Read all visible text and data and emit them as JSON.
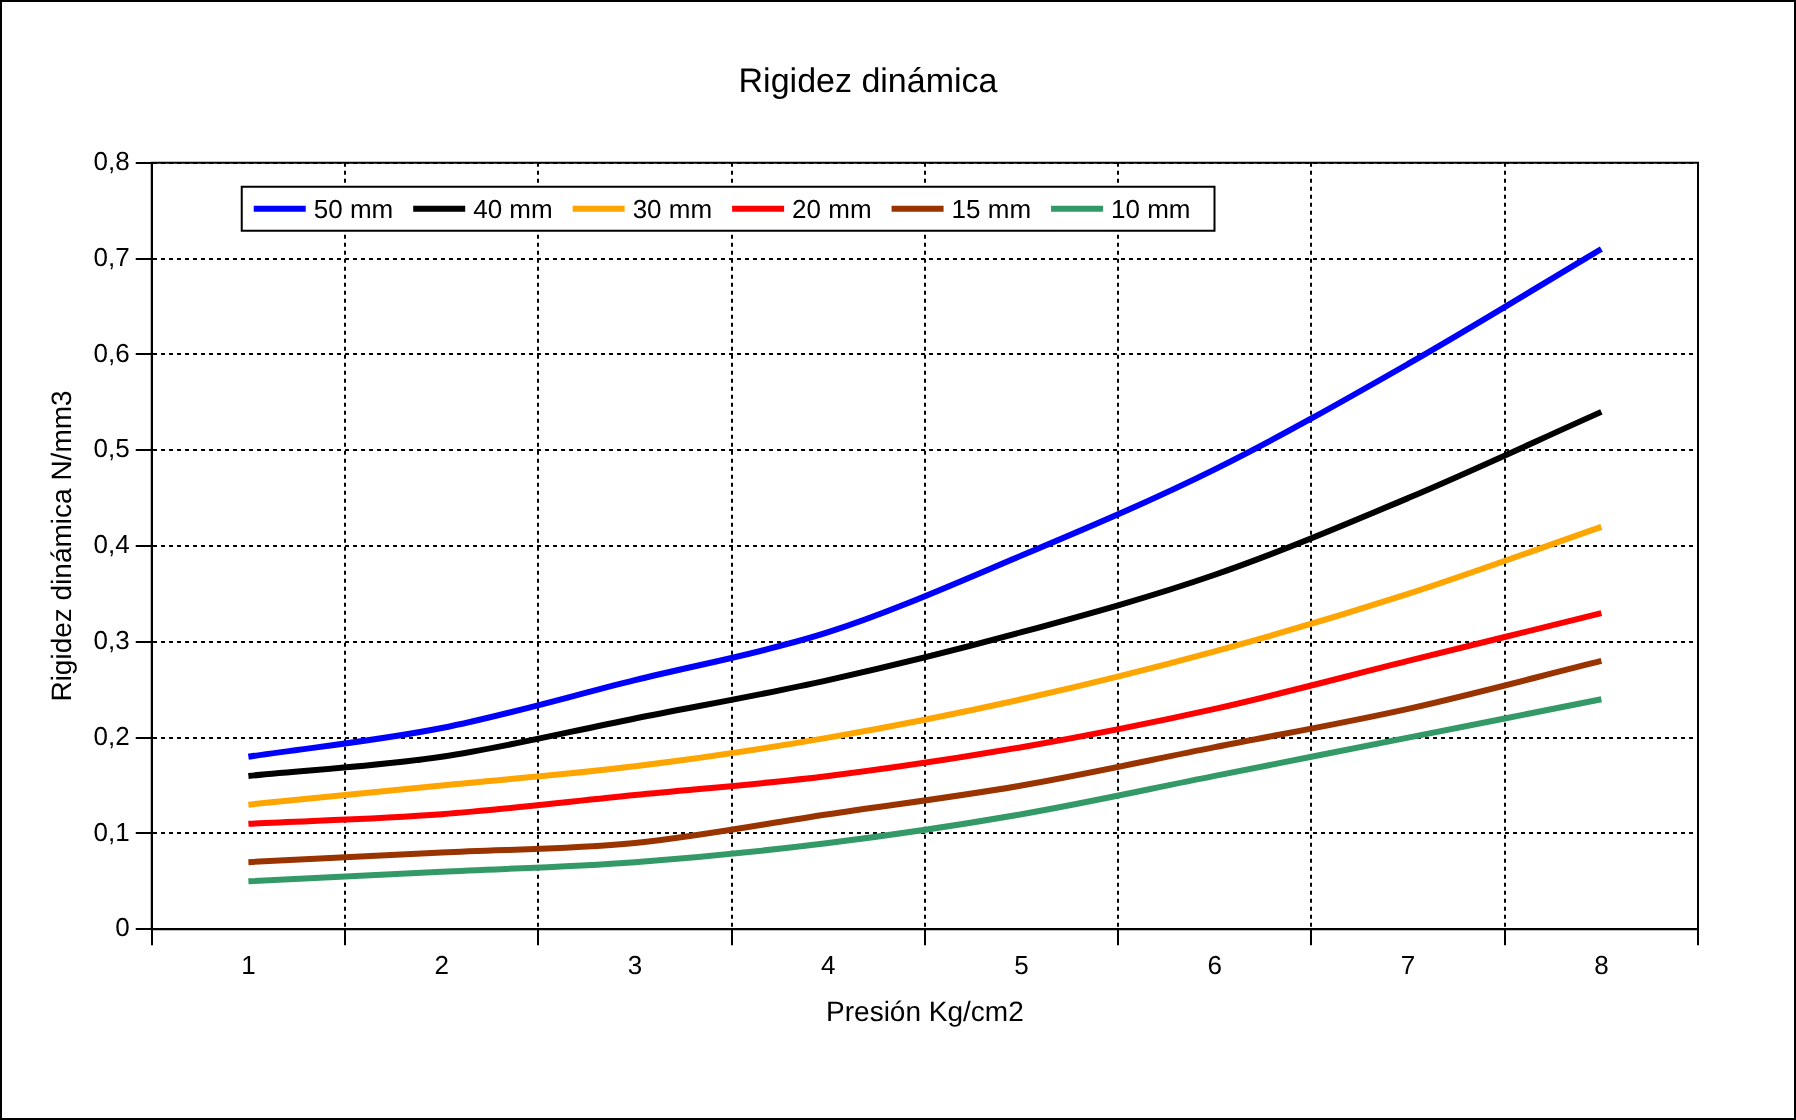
{
  "chart_data": {
    "type": "line",
    "title": "Rigidez dinámica",
    "xlabel": "Presión Kg/cm2",
    "ylabel": "Rigidez dinámica N/mm3",
    "categories": [
      "1",
      "2",
      "3",
      "4",
      "5",
      "6",
      "7",
      "8"
    ],
    "series": [
      {
        "name": "50 mm",
        "color": "#0000ff",
        "values": [
          0.18,
          0.21,
          0.26,
          0.31,
          0.39,
          0.48,
          0.59,
          0.71
        ]
      },
      {
        "name": "40 mm",
        "color": "#000000",
        "values": [
          0.16,
          0.18,
          0.22,
          0.26,
          0.31,
          0.37,
          0.45,
          0.54
        ]
      },
      {
        "name": "30 mm",
        "color": "#ffa500",
        "values": [
          0.13,
          0.15,
          0.17,
          0.2,
          0.24,
          0.29,
          0.35,
          0.42
        ]
      },
      {
        "name": "20 mm",
        "color": "#ff0000",
        "values": [
          0.11,
          0.12,
          0.14,
          0.16,
          0.19,
          0.23,
          0.28,
          0.33
        ]
      },
      {
        "name": "15 mm",
        "color": "#993300",
        "values": [
          0.07,
          0.08,
          0.09,
          0.12,
          0.15,
          0.19,
          0.23,
          0.28
        ]
      },
      {
        "name": "10 mm",
        "color": "#339966",
        "values": [
          0.05,
          0.06,
          0.07,
          0.09,
          0.12,
          0.16,
          0.2,
          0.24
        ]
      }
    ],
    "ylim": [
      0,
      0.8
    ],
    "yticks": [
      0,
      {
        "value": 0.1,
        "label": "0,1"
      },
      {
        "value": 0.2,
        "label": "0,2"
      },
      {
        "value": 0.3,
        "label": "0,3"
      },
      {
        "value": 0.4,
        "label": "0,4"
      },
      {
        "value": 0.5,
        "label": "0,5"
      },
      {
        "value": 0.6,
        "label": "0,6"
      },
      {
        "value": 0.7,
        "label": "0,7"
      },
      {
        "value": 0.8,
        "label": "0,8"
      }
    ],
    "grid": true,
    "legend": "top left",
    "marker": "none",
    "line_style": "solid"
  }
}
